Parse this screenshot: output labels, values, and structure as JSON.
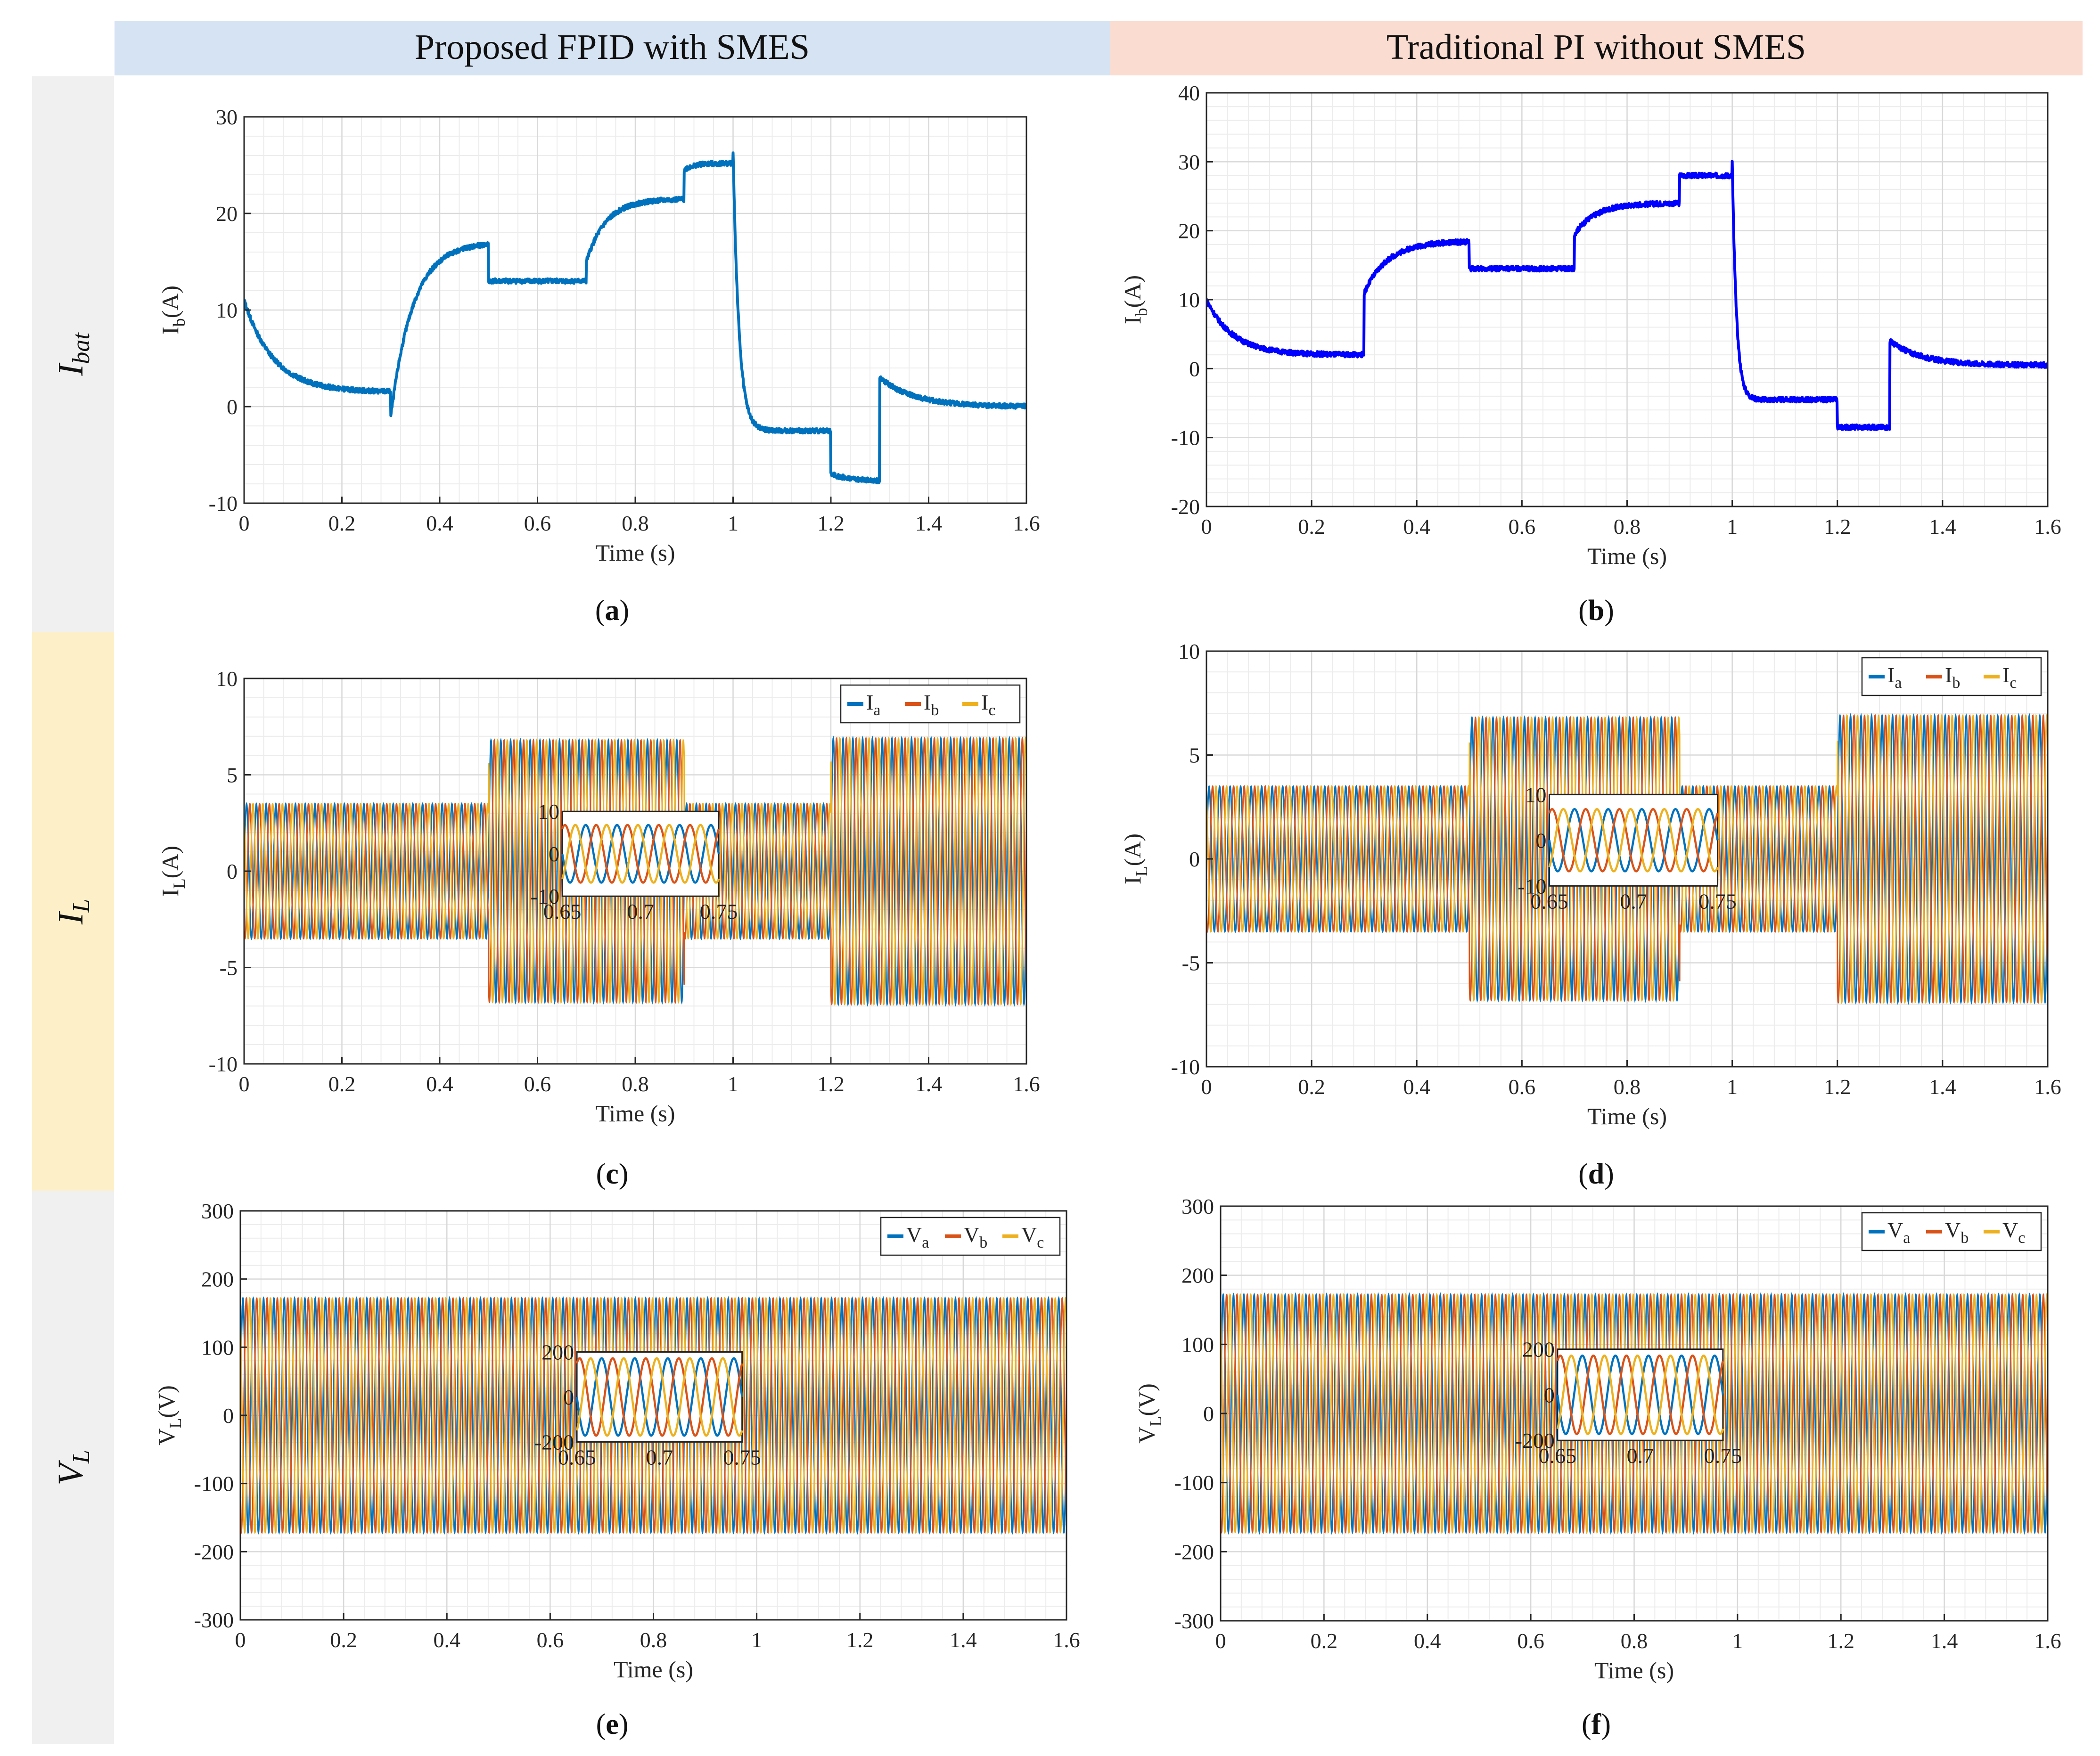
{
  "headers": {
    "left": "Proposed FPID with SMES",
    "right": "Traditional PI without SMES",
    "left_color": "#d6e3f3",
    "right_color": "#fbdcd0"
  },
  "rows": [
    {
      "label": "I",
      "sub": "bat",
      "color": "#f0f0f0"
    },
    {
      "label": "I",
      "sub": "L",
      "color": "#fdf0c8"
    },
    {
      "label": "V",
      "sub": "L",
      "color": "#f0f0f0"
    }
  ],
  "colors": {
    "phase_a": "#0072bd",
    "phase_b": "#d95319",
    "phase_c": "#edb120",
    "battery_left": "#0072bd",
    "battery_right": "#0000ff"
  },
  "chart_data": [
    {
      "id": "a",
      "type": "line",
      "caption": "a",
      "title": "",
      "xlabel": "Time (s)",
      "ylabel": "I",
      "ylabel_sub": "b",
      "ylabel_unit": "(A)",
      "xlim": [
        0,
        1.6
      ],
      "ylim": [
        -10,
        30
      ],
      "xticks": [
        0,
        0.2,
        0.4,
        0.6,
        0.8,
        1,
        1.2,
        1.4,
        1.6
      ],
      "yticks": [
        -10,
        0,
        10,
        20,
        30
      ],
      "grid": true,
      "series": [
        {
          "name": "I_b",
          "color": "#0072bd",
          "segments": [
            {
              "t0": 0.0,
              "t1": 0.3,
              "start": 11,
              "end": 1.5,
              "tau": 0.06
            },
            {
              "t0": 0.3,
              "t1": 0.5,
              "start": -1,
              "end": 17,
              "tau": 0.045
            },
            {
              "t0": 0.5,
              "t1": 0.7,
              "start": 13,
              "end": 13,
              "tau": 0.02
            },
            {
              "t0": 0.7,
              "t1": 0.9,
              "start": 15,
              "end": 21.5,
              "tau": 0.04
            },
            {
              "t0": 0.9,
              "t1": 1.0,
              "start": 24.5,
              "end": 25.2,
              "tau": 0.02
            },
            {
              "t0": 1.0,
              "t1": 1.2,
              "start": 26.5,
              "end": -2.5,
              "tau": 0.012
            },
            {
              "t0": 1.2,
              "t1": 1.3,
              "start": -7,
              "end": -7.8,
              "tau": 0.05
            },
            {
              "t0": 1.3,
              "t1": 1.6,
              "start": 3,
              "end": 0,
              "tau": 0.07
            }
          ]
        }
      ]
    },
    {
      "id": "b",
      "type": "line",
      "caption": "b",
      "title": "",
      "xlabel": "Time (s)",
      "ylabel": "I",
      "ylabel_sub": "b",
      "ylabel_unit": "(A)",
      "xlim": [
        0,
        1.6
      ],
      "ylim": [
        -20,
        40
      ],
      "xticks": [
        0,
        0.2,
        0.4,
        0.6,
        0.8,
        1,
        1.2,
        1.4,
        1.6
      ],
      "yticks": [
        -20,
        -10,
        0,
        10,
        20,
        30,
        40
      ],
      "grid": true,
      "series": [
        {
          "name": "I_b",
          "color": "#0000ff",
          "segments": [
            {
              "t0": 0.0,
              "t1": 0.3,
              "start": 10,
              "end": 2,
              "tau": 0.05
            },
            {
              "t0": 0.3,
              "t1": 0.5,
              "start": 11,
              "end": 18.5,
              "tau": 0.045
            },
            {
              "t0": 0.5,
              "t1": 0.7,
              "start": 14.5,
              "end": 14.5,
              "tau": 0.02
            },
            {
              "t0": 0.7,
              "t1": 0.9,
              "start": 19.5,
              "end": 24,
              "tau": 0.04
            },
            {
              "t0": 0.9,
              "t1": 1.0,
              "start": 28,
              "end": 28,
              "tau": 0.02
            },
            {
              "t0": 1.0,
              "t1": 1.2,
              "start": 30,
              "end": -4.5,
              "tau": 0.008
            },
            {
              "t0": 1.2,
              "t1": 1.3,
              "start": -8.5,
              "end": -8.5,
              "tau": 0.05
            },
            {
              "t0": 1.3,
              "t1": 1.6,
              "start": 4,
              "end": 0.5,
              "tau": 0.06
            }
          ]
        }
      ]
    },
    {
      "id": "c",
      "type": "line",
      "caption": "c",
      "title": "",
      "xlabel": "Time (s)",
      "ylabel": "I",
      "ylabel_sub": "L",
      "ylabel_unit": "(A)",
      "xlim": [
        0,
        1.6
      ],
      "ylim": [
        -10,
        10
      ],
      "xticks": [
        0,
        0.2,
        0.4,
        0.6,
        0.8,
        1,
        1.2,
        1.4,
        1.6
      ],
      "yticks": [
        -10,
        -5,
        0,
        5,
        10
      ],
      "grid": true,
      "legend": {
        "placement": "top-right",
        "entries": [
          {
            "base": "I",
            "sub": "a"
          },
          {
            "base": "I",
            "sub": "b"
          },
          {
            "base": "I",
            "sub": "c"
          }
        ]
      },
      "three_phase": {
        "freq": 50,
        "envelope": [
          {
            "t0": 0.0,
            "t1": 0.5,
            "amp": 3.5
          },
          {
            "t0": 0.5,
            "t1": 0.9,
            "amp": 6.8
          },
          {
            "t0": 0.9,
            "t1": 1.2,
            "amp": 3.5
          },
          {
            "t0": 1.2,
            "t1": 1.6,
            "amp": 6.9
          }
        ]
      },
      "inset": {
        "xlim": [
          0.65,
          0.75
        ],
        "ylim": [
          -10,
          10
        ],
        "xticks": [
          0.65,
          0.7,
          0.75
        ],
        "xtick_labels": [
          "0.65",
          "0.7",
          "0.75"
        ],
        "yticks": [
          -10,
          0,
          10
        ],
        "amp": 6.8
      }
    },
    {
      "id": "d",
      "type": "line",
      "caption": "d",
      "title": "",
      "xlabel": "Time (s)",
      "ylabel": "I",
      "ylabel_sub": "L",
      "ylabel_unit": "(A)",
      "xlim": [
        0,
        1.6
      ],
      "ylim": [
        -10,
        10
      ],
      "xticks": [
        0,
        0.2,
        0.4,
        0.6,
        0.8,
        1,
        1.2,
        1.4,
        1.6
      ],
      "yticks": [
        -10,
        -5,
        0,
        5,
        10
      ],
      "grid": true,
      "legend": {
        "placement": "top-right",
        "entries": [
          {
            "base": "I",
            "sub": "a"
          },
          {
            "base": "I",
            "sub": "b"
          },
          {
            "base": "I",
            "sub": "c"
          }
        ]
      },
      "three_phase": {
        "freq": 50,
        "envelope": [
          {
            "t0": 0.0,
            "t1": 0.5,
            "amp": 3.5
          },
          {
            "t0": 0.5,
            "t1": 0.9,
            "amp": 6.8
          },
          {
            "t0": 0.9,
            "t1": 1.2,
            "amp": 3.5
          },
          {
            "t0": 1.2,
            "t1": 1.6,
            "amp": 6.9
          }
        ]
      },
      "inset": {
        "xlim": [
          0.65,
          0.75
        ],
        "ylim": [
          -10,
          10
        ],
        "xticks": [
          0.65,
          0.7,
          0.75
        ],
        "xtick_labels": [
          "0.65",
          "0.7",
          "0.75"
        ],
        "yticks": [
          -10,
          0,
          10
        ],
        "amp": 6.8
      }
    },
    {
      "id": "e",
      "type": "line",
      "caption": "e",
      "title": "",
      "xlabel": "Time (s)",
      "ylabel": "V",
      "ylabel_sub": "L",
      "ylabel_unit": "(V)",
      "xlim": [
        0,
        1.6
      ],
      "ylim": [
        -300,
        300
      ],
      "xticks": [
        0,
        0.2,
        0.4,
        0.6,
        0.8,
        1,
        1.2,
        1.4,
        1.6
      ],
      "yticks": [
        -300,
        -200,
        -100,
        0,
        100,
        200,
        300
      ],
      "grid": true,
      "legend": {
        "placement": "top-right",
        "entries": [
          {
            "base": "V",
            "sub": "a"
          },
          {
            "base": "V",
            "sub": "b"
          },
          {
            "base": "V",
            "sub": "c"
          }
        ]
      },
      "three_phase": {
        "freq": 50,
        "envelope": [
          {
            "t0": 0.0,
            "t1": 1.6,
            "amp": 172
          }
        ]
      },
      "inset": {
        "xlim": [
          0.65,
          0.75
        ],
        "ylim": [
          -200,
          200
        ],
        "xticks": [
          0.65,
          0.7,
          0.75
        ],
        "xtick_labels": [
          "0.65",
          "0.7",
          "0.75"
        ],
        "yticks": [
          -200,
          0,
          200
        ],
        "amp": 172
      }
    },
    {
      "id": "f",
      "type": "line",
      "caption": "f",
      "title": "",
      "xlabel": "Time (s)",
      "ylabel": "V",
      "ylabel_sub": "L",
      "ylabel_unit": "(V)",
      "xlim": [
        0,
        1.6
      ],
      "ylim": [
        -300,
        300
      ],
      "xticks": [
        0,
        0.2,
        0.4,
        0.6,
        0.8,
        1,
        1.2,
        1.4,
        1.6
      ],
      "yticks": [
        -300,
        -200,
        -100,
        0,
        100,
        200,
        300
      ],
      "grid": true,
      "legend": {
        "placement": "top-right",
        "entries": [
          {
            "base": "V",
            "sub": "a"
          },
          {
            "base": "V",
            "sub": "b"
          },
          {
            "base": "V",
            "sub": "c"
          }
        ]
      },
      "three_phase": {
        "freq": 50,
        "envelope": [
          {
            "t0": 0.0,
            "t1": 1.6,
            "amp": 172
          }
        ]
      },
      "inset": {
        "xlim": [
          0.65,
          0.75
        ],
        "ylim": [
          -200,
          200
        ],
        "xticks": [
          0.65,
          0.7,
          0.75
        ],
        "xtick_labels": [
          "0.65",
          "0.7",
          "0.75"
        ],
        "yticks": [
          -200,
          0,
          200
        ],
        "amp": 172
      }
    }
  ]
}
